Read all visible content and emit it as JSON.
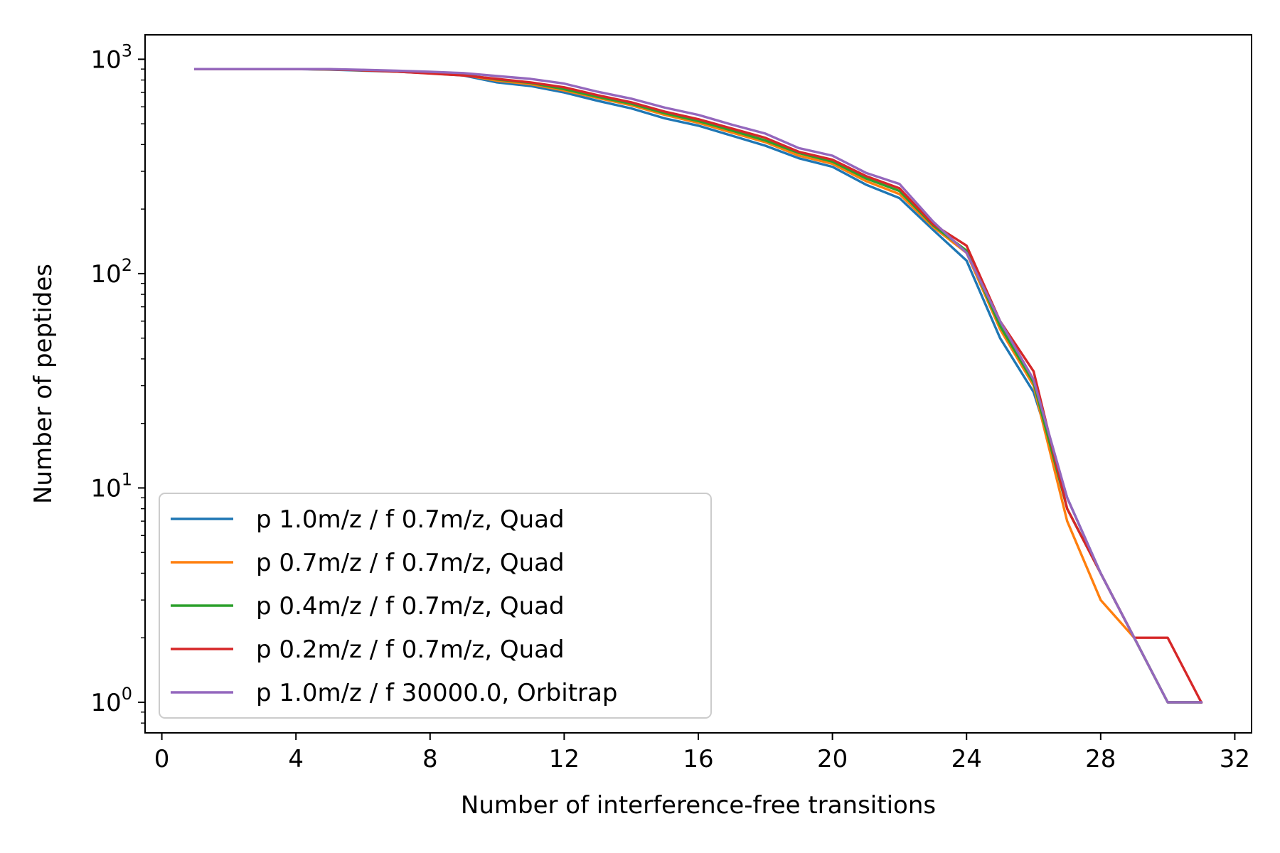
{
  "chart_data": {
    "type": "line",
    "title": "",
    "xlabel": "Number of interference-free transitions",
    "ylabel": "Number of peptides",
    "xlim": [
      -0.5,
      32.5
    ],
    "ylim": [
      0.72,
      1300
    ],
    "yscale": "log",
    "x_ticks": [
      0,
      4,
      8,
      12,
      16,
      20,
      24,
      28,
      32
    ],
    "x_tick_labels": [
      "0",
      "4",
      "8",
      "12",
      "16",
      "20",
      "24",
      "28",
      "32"
    ],
    "y_ticks": [
      {
        "value": 1,
        "base": "10",
        "exp": "0"
      },
      {
        "value": 10,
        "base": "10",
        "exp": "1"
      },
      {
        "value": 100,
        "base": "10",
        "exp": "2"
      },
      {
        "value": 1000,
        "base": "10",
        "exp": "3"
      }
    ],
    "legend_position": "lower-left",
    "grid": false,
    "x": [
      1,
      2,
      3,
      4,
      5,
      6,
      7,
      8,
      9,
      10,
      11,
      12,
      13,
      14,
      15,
      16,
      17,
      18,
      19,
      20,
      21,
      22,
      23,
      24,
      25,
      26,
      27,
      28,
      29,
      30,
      31
    ],
    "series": [
      {
        "name": "p 1.0m/z / f 0.7m/z, Quad",
        "color": "#1f77b4",
        "values": [
          900,
          900,
          900,
          900,
          895,
          885,
          875,
          860,
          840,
          780,
          750,
          700,
          640,
          590,
          530,
          490,
          440,
          395,
          345,
          315,
          260,
          225,
          160,
          115,
          50,
          28,
          9,
          4,
          2,
          1,
          1
        ]
      },
      {
        "name": "p 0.7m/z / f 0.7m/z, Quad",
        "color": "#ff7f0e",
        "values": [
          900,
          900,
          900,
          900,
          897,
          888,
          878,
          862,
          845,
          795,
          765,
          715,
          660,
          610,
          550,
          505,
          455,
          410,
          355,
          325,
          270,
          235,
          165,
          125,
          55,
          30,
          7,
          3,
          2,
          1,
          1
        ]
      },
      {
        "name": "p 0.4m/z / f 0.7m/z, Quad",
        "color": "#2ca02c",
        "values": [
          900,
          900,
          900,
          900,
          897,
          889,
          880,
          864,
          848,
          805,
          775,
          725,
          668,
          620,
          560,
          515,
          465,
          418,
          365,
          333,
          278,
          243,
          168,
          128,
          57,
          31,
          8,
          4,
          2,
          1,
          1
        ]
      },
      {
        "name": "p 0.2m/z / f 0.7m/z, Quad",
        "color": "#d62728",
        "values": [
          900,
          900,
          900,
          900,
          897,
          888,
          876,
          858,
          840,
          810,
          780,
          740,
          680,
          630,
          570,
          525,
          475,
          430,
          370,
          340,
          285,
          250,
          170,
          135,
          60,
          35,
          8,
          4,
          2,
          2,
          1
        ]
      },
      {
        "name": "p 1.0m/z / f 30000.0, Orbitrap",
        "color": "#9467bd",
        "values": [
          900,
          900,
          900,
          900,
          900,
          893,
          885,
          874,
          862,
          835,
          810,
          770,
          705,
          655,
          595,
          550,
          495,
          450,
          385,
          355,
          295,
          262,
          175,
          125,
          60,
          32,
          9,
          4,
          2,
          1,
          1
        ]
      }
    ]
  }
}
